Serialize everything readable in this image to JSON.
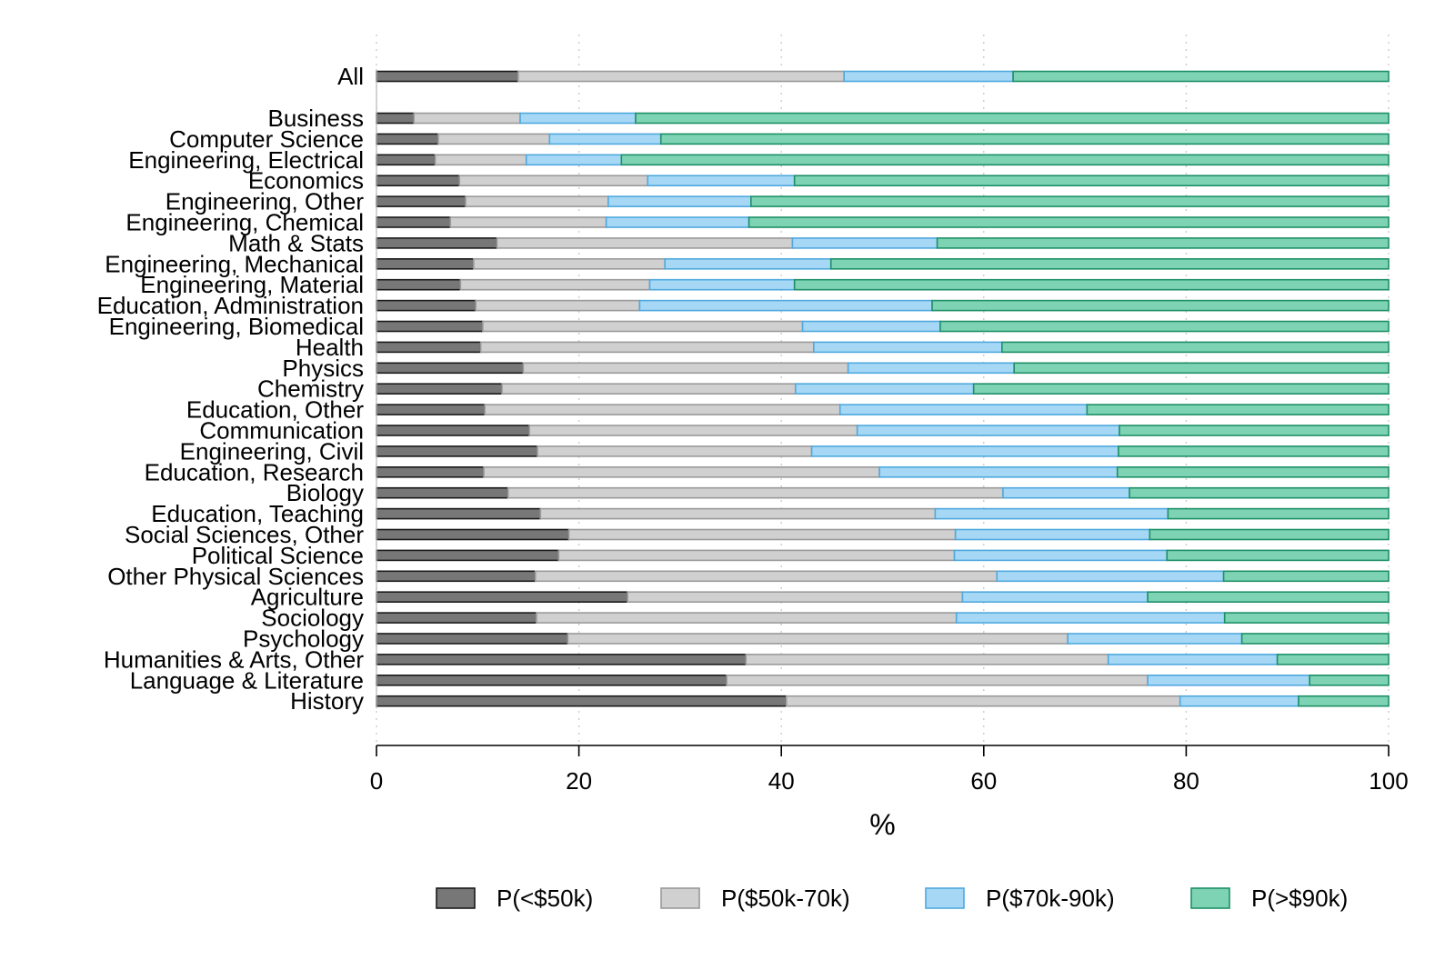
{
  "chart_data": {
    "type": "bar",
    "orientation": "horizontal",
    "stacked": true,
    "title": "",
    "xlabel": "%",
    "ylabel": "",
    "xlim": [
      0,
      100
    ],
    "xticks": [
      "0",
      "20",
      "40",
      "60",
      "80",
      "100"
    ],
    "grid": "vertical dotted",
    "legend_position": "bottom",
    "categories": [
      "All",
      "Business",
      "Computer Science",
      "Engineering, Electrical",
      "Economics",
      "Engineering, Other",
      "Engineering, Chemical",
      "Math & Stats",
      "Engineering, Mechanical",
      "Engineering, Material",
      "Education, Administration",
      "Engineering, Biomedical",
      "Health",
      "Physics",
      "Chemistry",
      "Education, Other",
      "Communication",
      "Engineering, Civil",
      "Education, Research",
      "Biology",
      "Education, Teaching",
      "Social Sciences, Other",
      "Political Science",
      "Other Physical Sciences",
      "Agriculture",
      "Sociology",
      "Psychology",
      "Humanities & Arts, Other",
      "Language & Literature",
      "History"
    ],
    "series": [
      {
        "name": "P(<$50k)",
        "color": "#777777",
        "stroke": "#1a1a1a",
        "values": [
          14.0,
          3.7,
          6.1,
          5.8,
          8.2,
          8.8,
          7.3,
          11.9,
          9.6,
          8.3,
          9.8,
          10.5,
          10.3,
          14.5,
          12.4,
          10.7,
          15.1,
          15.9,
          10.6,
          13.0,
          16.2,
          19.0,
          18.0,
          15.7,
          24.8,
          15.8,
          18.9,
          36.5,
          34.6,
          40.5
        ]
      },
      {
        "name": "P($50k-70k)",
        "color": "#d0d0d0",
        "stroke": "#9a9a9a",
        "values": [
          32.2,
          10.5,
          11.0,
          9.0,
          18.6,
          14.1,
          15.4,
          29.2,
          18.9,
          18.7,
          16.2,
          31.6,
          32.9,
          32.1,
          29.0,
          35.1,
          32.4,
          27.1,
          39.1,
          48.9,
          39.0,
          38.2,
          39.1,
          45.6,
          33.1,
          41.5,
          49.4,
          35.8,
          41.6,
          38.9
        ]
      },
      {
        "name": "P($70k-90k)",
        "color": "#a6d8f5",
        "stroke": "#4fa9de",
        "values": [
          16.7,
          11.4,
          11.0,
          9.4,
          14.5,
          14.1,
          14.1,
          14.3,
          16.4,
          14.3,
          28.9,
          13.6,
          18.6,
          16.4,
          17.6,
          24.4,
          25.9,
          30.3,
          23.5,
          12.5,
          23.0,
          19.2,
          21.0,
          22.4,
          18.3,
          26.5,
          17.2,
          16.7,
          16.0,
          11.7
        ]
      },
      {
        "name": "P(>$90k)",
        "color": "#7dd3b4",
        "stroke": "#1e9068",
        "values": [
          37.1,
          74.4,
          71.9,
          75.8,
          58.7,
          63.0,
          63.2,
          44.6,
          55.1,
          58.7,
          45.1,
          44.3,
          38.2,
          37.0,
          41.0,
          29.8,
          26.6,
          26.7,
          26.8,
          25.6,
          21.8,
          23.6,
          21.9,
          16.3,
          23.8,
          16.2,
          14.5,
          11.0,
          7.8,
          8.9
        ]
      }
    ]
  }
}
